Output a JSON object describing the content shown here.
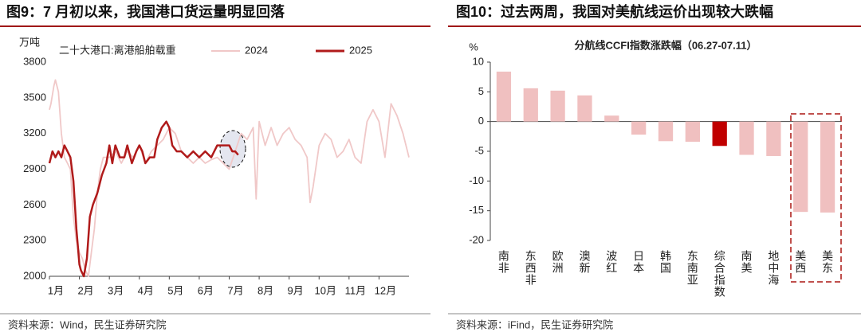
{
  "figures": [
    {
      "heading": "图9：7 月初以来，我国港口货运量明显回落",
      "source": "资料来源：Wind，民生证券研究院"
    },
    {
      "heading": "图10：过去两周，我国对美航线运价出现较大跌幅",
      "source": "资料来源：iFind，民生证券研究院"
    }
  ],
  "chart_data": [
    {
      "type": "line",
      "y_label": "万吨",
      "legend_title": "二十大港口:离港船舶载重",
      "xlim": [
        1,
        13
      ],
      "xticks": [
        {
          "value": 1,
          "label": "1月"
        },
        {
          "value": 2,
          "label": "2月"
        },
        {
          "value": 3,
          "label": "3月"
        },
        {
          "value": 4,
          "label": "4月"
        },
        {
          "value": 5,
          "label": "5月"
        },
        {
          "value": 6,
          "label": "6月"
        },
        {
          "value": 7,
          "label": "7月"
        },
        {
          "value": 8,
          "label": "8月"
        },
        {
          "value": 9,
          "label": "9月"
        },
        {
          "value": 10,
          "label": "10月"
        },
        {
          "value": 11,
          "label": "11月"
        },
        {
          "value": 12,
          "label": "12月"
        }
      ],
      "ylim": [
        2000,
        3800
      ],
      "yticks": [
        2000,
        2300,
        2600,
        2900,
        3200,
        3500,
        3800
      ],
      "series": [
        {
          "name": "2024",
          "color": "#f0c8c8",
          "x": [
            1.0,
            1.05,
            1.15,
            1.2,
            1.3,
            1.4,
            1.5,
            1.6,
            1.7,
            1.8,
            1.9,
            2.0,
            2.1,
            2.2,
            2.3,
            2.4,
            2.5,
            2.6,
            2.7,
            2.8,
            3.0,
            3.2,
            3.4,
            3.6,
            3.8,
            4.0,
            4.2,
            4.4,
            4.6,
            4.8,
            5.0,
            5.2,
            5.4,
            5.6,
            5.8,
            6.0,
            6.2,
            6.4,
            6.6,
            6.8,
            7.0,
            7.2,
            7.4,
            7.6,
            7.8,
            7.9,
            8.0,
            8.2,
            8.4,
            8.6,
            8.8,
            9.0,
            9.2,
            9.4,
            9.6,
            9.7,
            9.8,
            10.0,
            10.2,
            10.4,
            10.6,
            10.8,
            11.0,
            11.2,
            11.4,
            11.6,
            11.8,
            12.0,
            12.2,
            12.4,
            12.6,
            12.8,
            13.0
          ],
          "values": [
            3400,
            3450,
            3600,
            3650,
            3550,
            3200,
            3000,
            2950,
            2900,
            2500,
            2300,
            2200,
            2150,
            2050,
            2000,
            2200,
            2400,
            2700,
            2900,
            3000,
            3000,
            3050,
            2950,
            3050,
            3000,
            3100,
            2950,
            3050,
            3100,
            3150,
            3250,
            3200,
            3050,
            3000,
            2950,
            3000,
            2950,
            2980,
            3000,
            2950,
            2900,
            3050,
            3200,
            3150,
            3250,
            2650,
            3300,
            3100,
            3250,
            3100,
            3200,
            3250,
            3150,
            3100,
            3000,
            2620,
            2750,
            3100,
            3200,
            3150,
            3000,
            3050,
            3150,
            3000,
            2950,
            3300,
            3400,
            3300,
            3000,
            3450,
            3350,
            3200,
            3000
          ]
        },
        {
          "name": "2025",
          "color": "#b01a1a",
          "x": [
            1.0,
            1.1,
            1.2,
            1.3,
            1.4,
            1.5,
            1.6,
            1.7,
            1.8,
            1.9,
            2.0,
            2.05,
            2.15,
            2.25,
            2.35,
            2.45,
            2.6,
            2.75,
            2.9,
            3.0,
            3.1,
            3.2,
            3.35,
            3.5,
            3.6,
            3.75,
            3.9,
            4.0,
            4.1,
            4.2,
            4.35,
            4.5,
            4.6,
            4.75,
            4.9,
            5.0,
            5.1,
            5.25,
            5.4,
            5.6,
            5.8,
            6.0,
            6.2,
            6.4,
            6.6,
            6.8,
            7.0,
            7.1,
            7.2,
            7.3
          ],
          "values": [
            2950,
            3050,
            3000,
            3050,
            3000,
            3100,
            3050,
            3000,
            2800,
            2400,
            2100,
            2050,
            2000,
            2150,
            2500,
            2600,
            2700,
            2850,
            2950,
            3100,
            2950,
            3100,
            3000,
            3000,
            3100,
            2950,
            3050,
            3100,
            3050,
            2950,
            3000,
            3000,
            3150,
            3250,
            3300,
            3250,
            3100,
            3050,
            3050,
            3000,
            3050,
            3000,
            3050,
            3000,
            3100,
            3100,
            3100,
            3050,
            3050,
            3020
          ]
        }
      ]
    },
    {
      "type": "bar",
      "title": "分航线CCFI指数涨跌幅（06.27-07.11）",
      "y_label": "%",
      "categories": [
        "南非",
        "东西非",
        "欧洲",
        "澳新",
        "波红",
        "日本",
        "韩国",
        "东南亚",
        "综合指数",
        "南美",
        "地中海",
        "美西",
        "美东"
      ],
      "values": [
        8.4,
        5.6,
        5.2,
        4.4,
        1.0,
        -2.2,
        -3.3,
        -3.4,
        -4.1,
        -5.6,
        -5.8,
        -15.2,
        -15.3
      ],
      "colors": [
        "#f0c0c0",
        "#f0c0c0",
        "#f0c0c0",
        "#f0c0c0",
        "#f0c0c0",
        "#f0c0c0",
        "#f0c0c0",
        "#f0c0c0",
        "#c00000",
        "#f0c0c0",
        "#f0c0c0",
        "#f0c0c0",
        "#f0c0c0"
      ],
      "ylim": [
        -20,
        10
      ],
      "yticks": [
        -20,
        -15,
        -10,
        -5,
        0,
        5,
        10
      ]
    }
  ]
}
